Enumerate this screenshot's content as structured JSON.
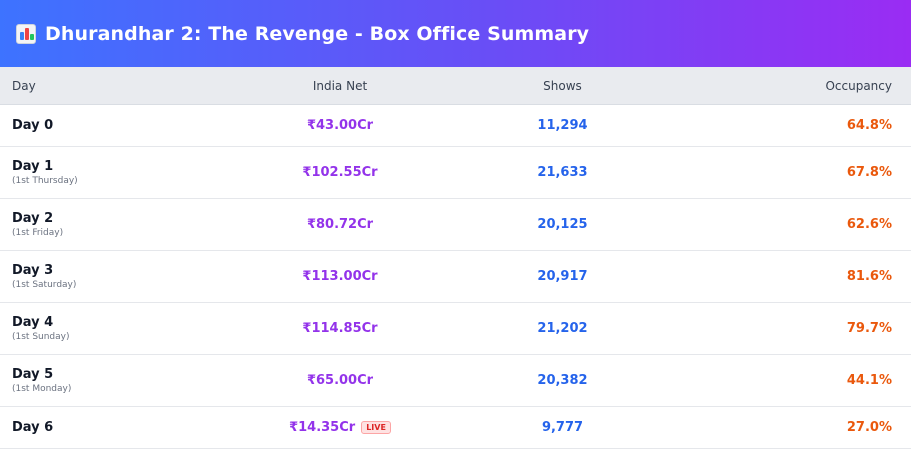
{
  "header": {
    "icon": "bar-chart-icon",
    "title": "Dhurandhar 2: The Revenge - Box Office Summary"
  },
  "colors": {
    "gradient_start": "#3d73ff",
    "gradient_end": "#9a2cf3",
    "net": "#9333ea",
    "shows": "#2563eb",
    "occupancy": "#ea580c",
    "live": "#dc2626"
  },
  "table": {
    "columns": [
      "Day",
      "India Net",
      "Shows",
      "Occupancy"
    ],
    "rows": [
      {
        "day": "Day 0",
        "sub": "",
        "net": "₹43.00Cr",
        "shows": "11,294",
        "occupancy": "64.8%",
        "live": ""
      },
      {
        "day": "Day 1",
        "sub": "(1st Thursday)",
        "net": "₹102.55Cr",
        "shows": "21,633",
        "occupancy": "67.8%",
        "live": ""
      },
      {
        "day": "Day 2",
        "sub": "(1st Friday)",
        "net": "₹80.72Cr",
        "shows": "20,125",
        "occupancy": "62.6%",
        "live": ""
      },
      {
        "day": "Day 3",
        "sub": "(1st Saturday)",
        "net": "₹113.00Cr",
        "shows": "20,917",
        "occupancy": "81.6%",
        "live": ""
      },
      {
        "day": "Day 4",
        "sub": "(1st Sunday)",
        "net": "₹114.85Cr",
        "shows": "21,202",
        "occupancy": "79.7%",
        "live": ""
      },
      {
        "day": "Day 5",
        "sub": "(1st Monday)",
        "net": "₹65.00Cr",
        "shows": "20,382",
        "occupancy": "44.1%",
        "live": ""
      },
      {
        "day": "Day 6",
        "sub": "",
        "net": "₹14.35Cr",
        "shows": "9,777",
        "occupancy": "27.0%",
        "live": "LIVE"
      }
    ]
  }
}
